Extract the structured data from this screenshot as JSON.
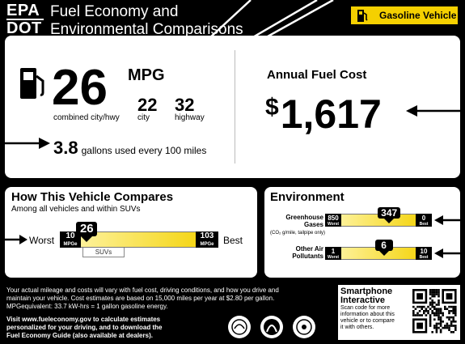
{
  "header": {
    "agency_top": "EPA",
    "agency_bottom": "DOT",
    "title_line1": "Fuel Economy and",
    "title_line2": "Environmental Comparisons",
    "vehicle_type": "Gasoline Vehicle"
  },
  "fuel_economy": {
    "combined_mpg": "26",
    "mpg_unit": "MPG",
    "combined_label": "combined city/hwy",
    "city_mpg": "22",
    "city_label": "city",
    "highway_mpg": "32",
    "highway_label": "highway",
    "gallons_value": "3.8",
    "gallons_label": "gallons used every 100 miles"
  },
  "annual_cost": {
    "title": "Annual Fuel Cost",
    "currency": "$",
    "value": "1,617"
  },
  "compare": {
    "title": "How This Vehicle Compares",
    "subtitle": "Among all vehicles and within SUVs",
    "worst_label": "Worst",
    "best_label": "Best",
    "min_value": "10",
    "min_unit": "MPGe",
    "max_value": "103",
    "max_unit": "MPGe",
    "vehicle_value": "26",
    "range_label": "SUVs",
    "position_fraction": 0.17
  },
  "environment": {
    "title": "Environment",
    "ghg_label_1": "Greenhouse",
    "ghg_label_2": "Gases",
    "ghg_label_3": "(CO₂ g/mile, tailpipe only)",
    "ghg_worst_value": "850",
    "ghg_worst_label": "Worst",
    "ghg_value": "347",
    "ghg_best_value": "0",
    "ghg_best_label": "Best",
    "ghg_position_fraction": 0.6,
    "air_label_1": "Other Air",
    "air_label_2": "Pollutants",
    "air_worst_value": "1",
    "air_worst_label": "Worst",
    "air_value": "6",
    "air_best_value": "10",
    "air_best_label": "Best",
    "air_position_fraction": 0.55
  },
  "footer": {
    "line1": "Your actual mileage and costs will vary with fuel cost, driving conditions, and how you drive and",
    "line2": "maintain your vehicle. Cost estimates are based on 15,000 miles per year at $2.80 per gallon.",
    "line3": "MPGequivalent: 33.7 kW-hrs = 1 gallon gasoline energy.",
    "visit1": "Visit www.fueleconomy.gov to calculate estimates",
    "visit2": "personalized for your driving, and to download the",
    "visit3": "Fuel Economy Guide (also available at dealers)."
  },
  "smartphone": {
    "title_1": "Smartphone",
    "title_2": "Interactive",
    "text_1": "Scan code for more",
    "text_2": "information about this",
    "text_3": "vehicle or to compare",
    "text_4": "it with others."
  },
  "colors": {
    "accent_yellow": "#f5d000",
    "background": "#000000",
    "panel": "#ffffff"
  },
  "icons": [
    "fuel-pump-icon",
    "arrow-icon",
    "epa-seal-icon",
    "dot-seal-icon",
    "energy-seal-icon",
    "qr-code-icon"
  ]
}
